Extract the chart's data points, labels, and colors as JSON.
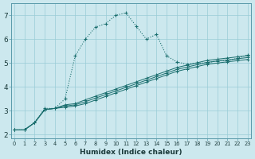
{
  "xlabel": "Humidex (Indice chaleur)",
  "bg_color": "#cce8ee",
  "grid_color": "#99ccd6",
  "line_color": "#1a6e6e",
  "xlim": [
    -0.3,
    23.3
  ],
  "ylim": [
    1.85,
    7.5
  ],
  "xticks": [
    0,
    1,
    2,
    3,
    4,
    5,
    6,
    7,
    8,
    9,
    10,
    11,
    12,
    13,
    14,
    15,
    16,
    17,
    18,
    19,
    20,
    21,
    22,
    23
  ],
  "yticks": [
    2,
    3,
    4,
    5,
    6,
    7
  ],
  "peak_x": [
    0,
    1,
    2,
    3,
    4,
    5,
    6,
    7,
    8,
    9,
    10,
    11,
    12,
    13,
    14,
    15,
    16,
    17,
    18,
    19,
    20,
    21,
    22,
    23
  ],
  "peak_y": [
    2.2,
    2.2,
    2.5,
    3.1,
    3.1,
    3.5,
    5.3,
    6.0,
    6.5,
    6.65,
    7.0,
    7.1,
    6.55,
    6.0,
    6.2,
    5.3,
    5.05,
    4.95,
    5.0,
    5.0,
    5.1,
    5.1,
    5.2,
    5.35
  ],
  "line1_x": [
    0,
    1,
    2,
    3,
    4,
    5,
    6,
    7,
    8,
    9,
    10,
    11,
    12,
    13,
    14,
    15,
    16,
    17,
    18,
    19,
    20,
    21,
    22,
    23
  ],
  "line1_y": [
    2.2,
    2.2,
    2.5,
    3.05,
    3.1,
    3.15,
    3.2,
    3.3,
    3.45,
    3.6,
    3.75,
    3.9,
    4.05,
    4.2,
    4.35,
    4.5,
    4.65,
    4.75,
    4.85,
    4.95,
    5.0,
    5.05,
    5.1,
    5.15
  ],
  "line2_x": [
    0,
    1,
    2,
    3,
    4,
    5,
    6,
    7,
    8,
    9,
    10,
    11,
    12,
    13,
    14,
    15,
    16,
    17,
    18,
    19,
    20,
    21,
    22,
    23
  ],
  "line2_y": [
    2.2,
    2.2,
    2.5,
    3.05,
    3.1,
    3.2,
    3.25,
    3.38,
    3.53,
    3.68,
    3.83,
    3.98,
    4.13,
    4.28,
    4.43,
    4.58,
    4.73,
    4.83,
    4.93,
    5.03,
    5.08,
    5.13,
    5.18,
    5.23
  ],
  "line3_x": [
    0,
    1,
    2,
    3,
    4,
    5,
    6,
    7,
    8,
    9,
    10,
    11,
    12,
    13,
    14,
    15,
    16,
    17,
    18,
    19,
    20,
    21,
    22,
    23
  ],
  "line3_y": [
    2.2,
    2.2,
    2.5,
    3.05,
    3.1,
    3.25,
    3.3,
    3.46,
    3.61,
    3.76,
    3.91,
    4.06,
    4.21,
    4.36,
    4.51,
    4.66,
    4.81,
    4.91,
    5.01,
    5.11,
    5.16,
    5.21,
    5.26,
    5.31
  ]
}
